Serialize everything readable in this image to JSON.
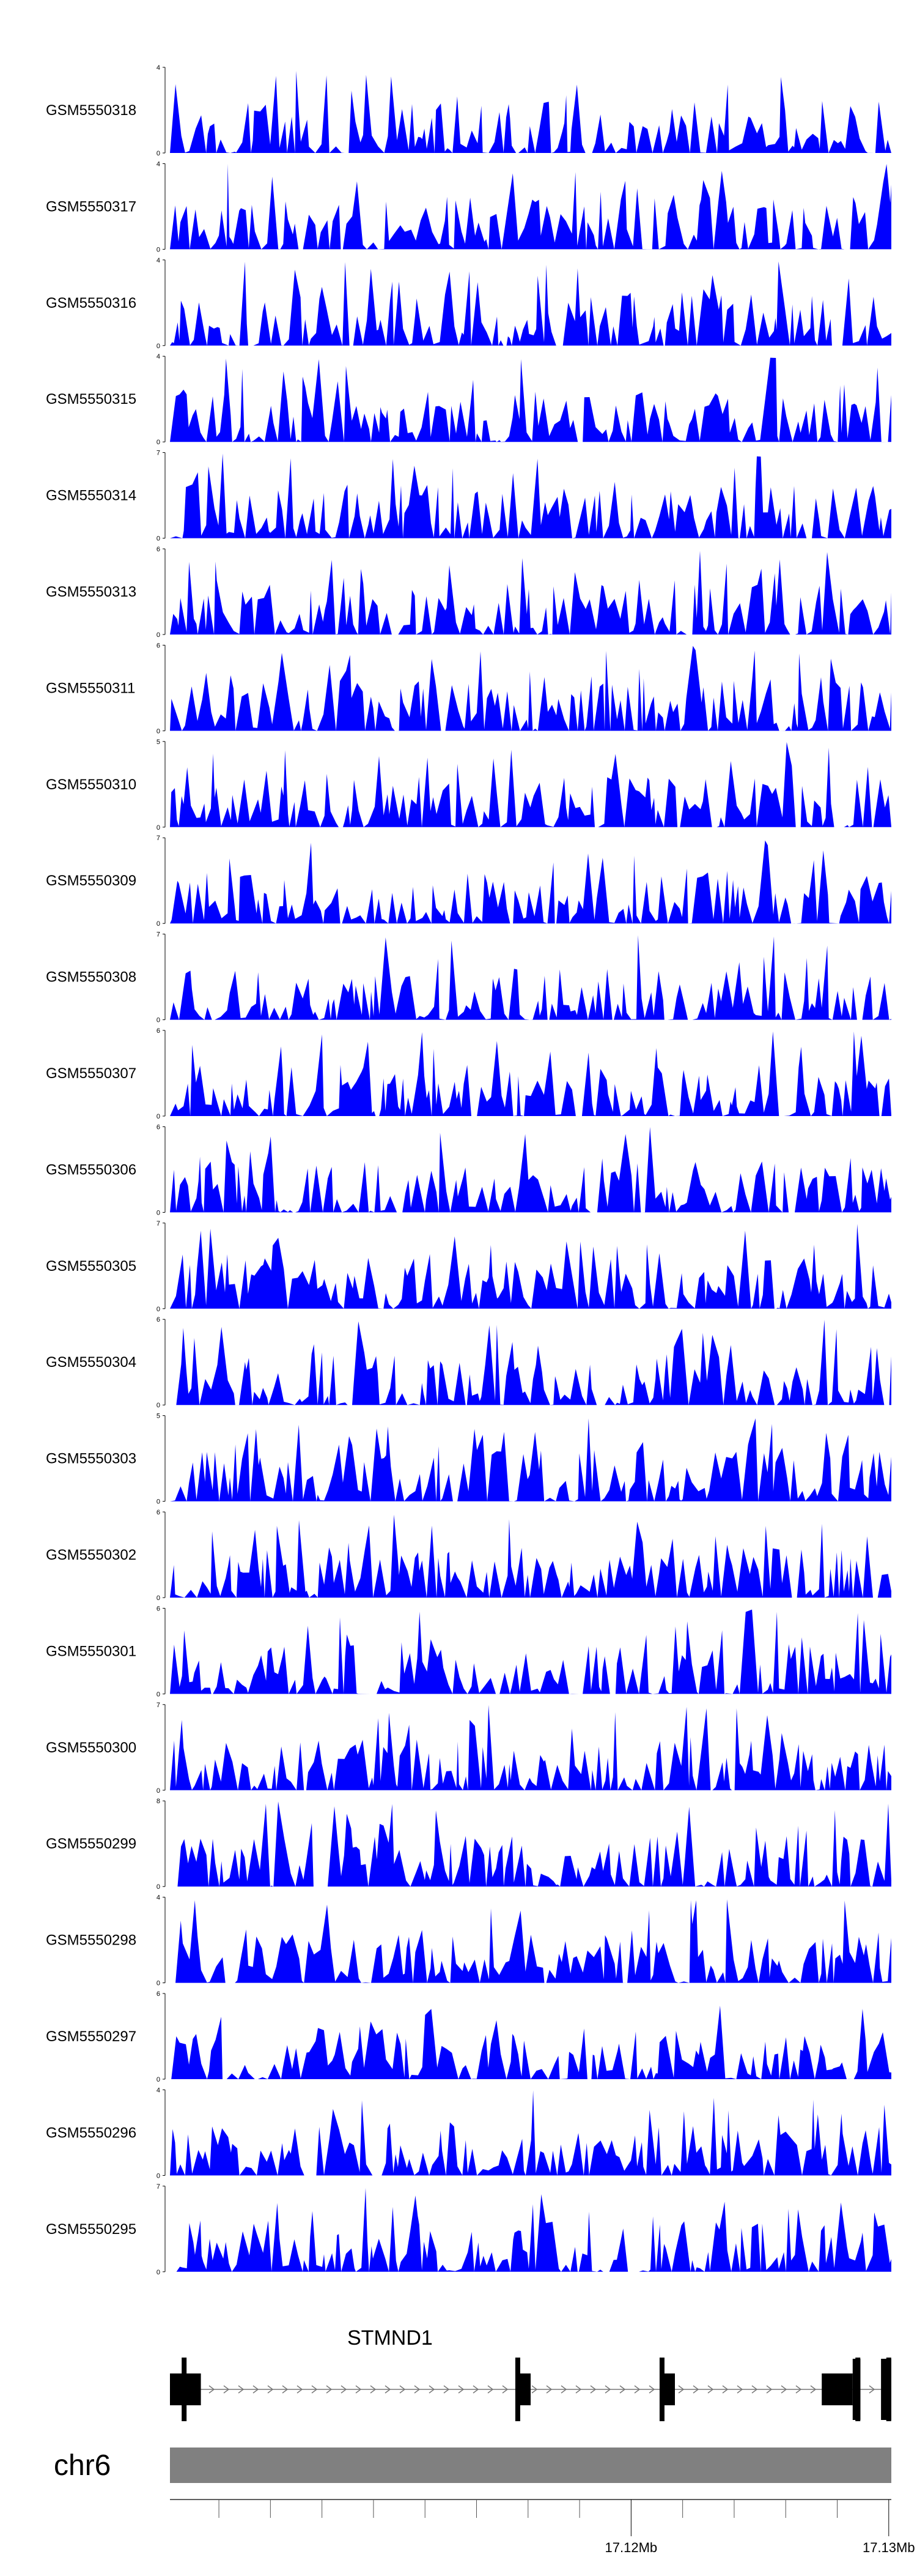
{
  "chart_data": {
    "type": "area",
    "chromosome": "chr6",
    "gene": {
      "name": "STMND1",
      "strand": "+",
      "start": 17.1021,
      "end": 17.1301,
      "exons": [
        {
          "start": 17.1021,
          "end": 17.1033,
          "thick": true
        },
        {
          "start": 17.1156,
          "end": 17.1161,
          "thick": true
        },
        {
          "start": 17.1212,
          "end": 17.1217,
          "thick": true
        },
        {
          "start": 17.1274,
          "end": 17.1286,
          "thick": true
        },
        {
          "start": 17.1286,
          "end": 17.1289,
          "thick": false
        },
        {
          "start": 17.1297,
          "end": 17.1301,
          "thick": false
        }
      ]
    },
    "genome_axis": {
      "range": [
        17.1021,
        17.1301
      ],
      "minor_ticks": [
        17.104,
        17.106,
        17.108,
        17.11,
        17.112,
        17.114,
        17.116,
        17.118,
        17.122,
        17.124,
        17.126,
        17.128
      ],
      "major_ticks": [
        17.12,
        17.13
      ],
      "major_labels": [
        "17.12Mb",
        "17.13Mb"
      ]
    },
    "track_color": "#0000ff",
    "tracks": [
      {
        "name": "GSM5550318",
        "ymax": 4,
        "seed": 18
      },
      {
        "name": "GSM5550317",
        "ymax": 4,
        "seed": 17
      },
      {
        "name": "GSM5550316",
        "ymax": 4,
        "seed": 16
      },
      {
        "name": "GSM5550315",
        "ymax": 4,
        "seed": 15
      },
      {
        "name": "GSM5550314",
        "ymax": 7,
        "seed": 14
      },
      {
        "name": "GSM5550313",
        "ymax": 6,
        "seed": 13
      },
      {
        "name": "GSM5550311",
        "ymax": 6,
        "seed": 11
      },
      {
        "name": "GSM5550310",
        "ymax": 5,
        "seed": 10
      },
      {
        "name": "GSM5550309",
        "ymax": 7,
        "seed": 9
      },
      {
        "name": "GSM5550308",
        "ymax": 7,
        "seed": 8
      },
      {
        "name": "GSM5550307",
        "ymax": 6,
        "seed": 7
      },
      {
        "name": "GSM5550306",
        "ymax": 6,
        "seed": 6
      },
      {
        "name": "GSM5550305",
        "ymax": 7,
        "seed": 5
      },
      {
        "name": "GSM5550304",
        "ymax": 6,
        "seed": 4
      },
      {
        "name": "GSM5550303",
        "ymax": 5,
        "seed": 3
      },
      {
        "name": "GSM5550302",
        "ymax": 6,
        "seed": 2
      },
      {
        "name": "GSM5550301",
        "ymax": 6,
        "seed": 1
      },
      {
        "name": "GSM5550300",
        "ymax": 7,
        "seed": 100
      },
      {
        "name": "GSM5550299",
        "ymax": 8,
        "seed": 99
      },
      {
        "name": "GSM5550298",
        "ymax": 4,
        "seed": 98
      },
      {
        "name": "GSM5550297",
        "ymax": 6,
        "seed": 97
      },
      {
        "name": "GSM5550296",
        "ymax": 4,
        "seed": 96
      },
      {
        "name": "GSM5550295",
        "ymax": 7,
        "seed": 95
      }
    ]
  }
}
